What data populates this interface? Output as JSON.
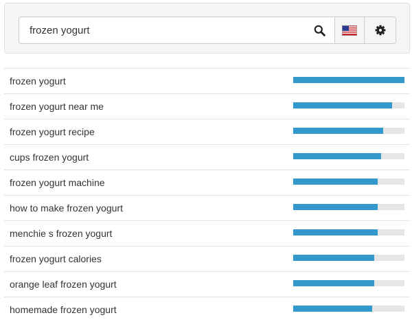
{
  "search": {
    "query": "frozen yogurt",
    "search_icon": "search-icon",
    "flag_icon": "us-flag-icon",
    "settings_icon": "gear-icon"
  },
  "colors": {
    "bar_fill": "#3399cc",
    "bar_track": "#e6e6e6"
  },
  "results": [
    {
      "label": "frozen yogurt",
      "score": 100
    },
    {
      "label": "frozen yogurt near me",
      "score": 89
    },
    {
      "label": "frozen yogurt recipe",
      "score": 81
    },
    {
      "label": "cups frozen yogurt",
      "score": 79
    },
    {
      "label": "frozen yogurt machine",
      "score": 76
    },
    {
      "label": "how to make frozen yogurt",
      "score": 76
    },
    {
      "label": "menchie s frozen yogurt",
      "score": 76
    },
    {
      "label": "frozen yogurt calories",
      "score": 73
    },
    {
      "label": "orange leaf frozen yogurt",
      "score": 73
    },
    {
      "label": "homemade frozen yogurt",
      "score": 71
    }
  ]
}
